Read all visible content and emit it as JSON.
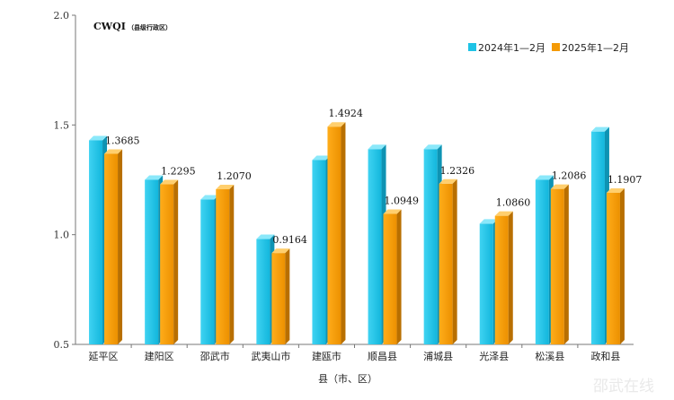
{
  "chart_data": {
    "type": "bar",
    "title": "CWQI",
    "subtitle": "（县级行政区）",
    "xlabel": "县（市、区）",
    "ylabel": "",
    "ylim": [
      0.5,
      2.0
    ],
    "yticks": [
      "0.5",
      "1.0",
      "1.5",
      "2.0"
    ],
    "categories": [
      "延平区",
      "建阳区",
      "邵武市",
      "武夷山市",
      "建瓯市",
      "顺昌县",
      "浦城县",
      "光泽县",
      "松溪县",
      "政和县"
    ],
    "series": [
      {
        "name": "2024年1—2月",
        "values": [
          1.43,
          1.25,
          1.16,
          0.98,
          1.34,
          1.39,
          1.39,
          1.05,
          1.25,
          1.47
        ],
        "color": "#1ec3e6"
      },
      {
        "name": "2025年1—2月",
        "values": [
          1.3685,
          1.2295,
          1.207,
          0.9164,
          1.4924,
          1.0949,
          1.2326,
          1.086,
          1.2086,
          1.1907
        ],
        "color": "#f49a06"
      }
    ],
    "data_labels": [
      "1.3685",
      "1.2295",
      "1.2070",
      "0.9164",
      "1.4924",
      "1.0949",
      "1.2326",
      "1.0860",
      "1.2086",
      "1.1907"
    ],
    "legend_position": "top-right",
    "grid": false
  },
  "watermark": "邵武在线"
}
